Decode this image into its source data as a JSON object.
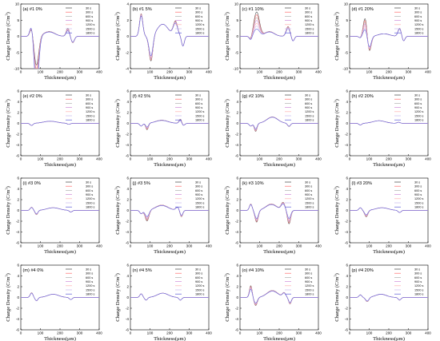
{
  "figure": {
    "xlabel": "Thickness(μm)",
    "ylabel": "Charge Density (C/m",
    "ylabel_sup": "3",
    "ylabel_close": ")"
  },
  "chart_data": {
    "type": "line",
    "xlim": [
      0,
      400
    ],
    "xticks": [
      0,
      100,
      200,
      300,
      400
    ],
    "legend": {
      "placement": "top-right",
      "entries": [
        "30 s",
        "300 s",
        "600 s",
        "900 s",
        "1200 s",
        "1500 s",
        "1800 s"
      ],
      "colors": [
        "#444444",
        "#ff6b6b",
        "#b0b0b0",
        "#d08ad8",
        "#ffb0b0",
        "#c9b7ee",
        "#5a5ad8"
      ]
    },
    "panels": [
      {
        "label": "(a) #1 0%",
        "ylim": [
          -10,
          10
        ],
        "yticks": [
          -10,
          -5,
          0,
          5,
          10
        ],
        "features": [
          [
            55,
            2.5,
            12,
            -0.4
          ],
          [
            80,
            -9,
            16,
            -0.8
          ],
          [
            145,
            1.5,
            40,
            0.1
          ],
          [
            240,
            2.5,
            12,
            0.3
          ],
          [
            265,
            -2,
            12,
            0.1
          ]
        ]
      },
      {
        "label": "(b) #1 5%",
        "ylim": [
          -4,
          4
        ],
        "yticks": [
          -4,
          -2,
          0,
          2,
          4
        ],
        "features": [
          [
            55,
            2.8,
            12,
            0.1
          ],
          [
            105,
            -3.2,
            14,
            0.2
          ],
          [
            165,
            1.5,
            40,
            0
          ],
          [
            230,
            1.8,
            16,
            0.15
          ],
          [
            268,
            -1.2,
            10,
            0
          ]
        ]
      },
      {
        "label": "(c) #1 10%",
        "ylim": [
          -10,
          10
        ],
        "yticks": [
          -10,
          -5,
          0,
          5,
          10
        ],
        "features": [
          [
            55,
            -1.2,
            10,
            0
          ],
          [
            85,
            7.5,
            20,
            0.7
          ],
          [
            150,
            1.5,
            35,
            0.1
          ],
          [
            245,
            3,
            14,
            0.2
          ],
          [
            270,
            -1.5,
            10,
            0
          ]
        ]
      },
      {
        "label": "(d) #1 20%",
        "ylim": [
          -10,
          10
        ],
        "yticks": [
          -10,
          -5,
          0,
          5,
          10
        ],
        "features": [
          [
            55,
            -0.5,
            10,
            0
          ],
          [
            80,
            6,
            14,
            0.6
          ],
          [
            100,
            -5,
            14,
            0.3
          ],
          [
            175,
            0.8,
            40,
            0
          ],
          [
            255,
            2.5,
            12,
            0.1
          ],
          [
            275,
            -1.5,
            10,
            0
          ]
        ]
      },
      {
        "label": "(e) #2 0%",
        "ylim": [
          -6,
          6
        ],
        "yticks": [
          -6,
          -4,
          -2,
          0,
          2,
          4,
          6
        ],
        "features": [
          [
            55,
            -0.4,
            10,
            0
          ],
          [
            150,
            0.4,
            50,
            0
          ],
          [
            245,
            -0.2,
            10,
            0
          ]
        ]
      },
      {
        "label": "(f) #2 5%",
        "ylim": [
          -6,
          6
        ],
        "yticks": [
          -6,
          -4,
          -2,
          0,
          2,
          4,
          6
        ],
        "features": [
          [
            55,
            -0.5,
            10,
            0
          ],
          [
            85,
            -1.2,
            10,
            0.4
          ],
          [
            160,
            0.6,
            45,
            0.1
          ],
          [
            255,
            0.8,
            10,
            0.3
          ],
          [
            270,
            -0.4,
            10,
            0
          ]
        ]
      },
      {
        "label": "(g) #2 10%",
        "ylim": [
          -6,
          6
        ],
        "yticks": [
          -6,
          -4,
          -2,
          0,
          2,
          4,
          6
        ],
        "features": [
          [
            55,
            -0.5,
            10,
            0
          ],
          [
            80,
            -1.5,
            10,
            0.3
          ],
          [
            165,
            1.2,
            40,
            0.05
          ],
          [
            250,
            -0.6,
            10,
            0.1
          ]
        ]
      },
      {
        "label": "(h) #2 20%",
        "ylim": [
          -6,
          6
        ],
        "yticks": [
          -6,
          -4,
          -2,
          0,
          2,
          4,
          6
        ],
        "features": [
          [
            55,
            -0.3,
            10,
            0
          ],
          [
            150,
            0.5,
            45,
            0
          ],
          [
            250,
            0.2,
            12,
            0
          ]
        ]
      },
      {
        "label": "(i) #3 0%",
        "ylim": [
          -6,
          6
        ],
        "yticks": [
          -6,
          -4,
          -2,
          0,
          2,
          4,
          6
        ],
        "features": [
          [
            55,
            0.6,
            10,
            0.1
          ],
          [
            80,
            -0.8,
            10,
            0.2
          ],
          [
            165,
            0.5,
            45,
            0
          ],
          [
            255,
            -0.3,
            10,
            0
          ]
        ]
      },
      {
        "label": "(j) #3 5%",
        "ylim": [
          -6,
          6
        ],
        "yticks": [
          -6,
          -4,
          -2,
          0,
          2,
          4,
          6
        ],
        "features": [
          [
            55,
            -0.6,
            10,
            0
          ],
          [
            85,
            -2,
            14,
            0.4
          ],
          [
            160,
            1,
            45,
            0.1
          ],
          [
            240,
            0.6,
            12,
            0.1
          ],
          [
            260,
            -1.2,
            10,
            0.2
          ]
        ]
      },
      {
        "label": "(k) #3 10%",
        "ylim": [
          -6,
          6
        ],
        "yticks": [
          -6,
          -4,
          -2,
          0,
          2,
          4,
          6
        ],
        "features": [
          [
            55,
            1.2,
            10,
            0.1
          ],
          [
            85,
            -2.2,
            12,
            0.3
          ],
          [
            160,
            1.2,
            40,
            0.1
          ],
          [
            220,
            1.4,
            14,
            0.2
          ],
          [
            250,
            -2.5,
            12,
            0.4
          ]
        ]
      },
      {
        "label": "(l) #3 20%",
        "ylim": [
          -6,
          6
        ],
        "yticks": [
          -6,
          -4,
          -2,
          0,
          2,
          4,
          6
        ],
        "features": [
          [
            55,
            0.5,
            10,
            0
          ],
          [
            85,
            -1.2,
            12,
            0.3
          ],
          [
            165,
            0.5,
            45,
            0
          ],
          [
            255,
            -0.4,
            10,
            0
          ]
        ]
      },
      {
        "label": "(m) #4 0%",
        "ylim": [
          -6,
          6
        ],
        "yticks": [
          -6,
          -4,
          -2,
          0,
          2,
          4,
          6
        ],
        "features": [
          [
            55,
            0.9,
            10,
            0.1
          ],
          [
            80,
            -0.6,
            10,
            0
          ],
          [
            165,
            0.6,
            40,
            0
          ],
          [
            255,
            -0.4,
            10,
            0
          ]
        ]
      },
      {
        "label": "(n) #4 5%",
        "ylim": [
          -6,
          6
        ],
        "yticks": [
          -6,
          -4,
          -2,
          0,
          2,
          4,
          6
        ],
        "features": [
          [
            55,
            0.7,
            10,
            0.05
          ],
          [
            80,
            -0.5,
            10,
            0
          ],
          [
            165,
            0.8,
            40,
            0
          ],
          [
            255,
            -0.5,
            10,
            0
          ]
        ]
      },
      {
        "label": "(o) #4 10%",
        "ylim": [
          -6,
          6
        ],
        "yticks": [
          -6,
          -4,
          -2,
          0,
          2,
          4,
          6
        ],
        "features": [
          [
            55,
            2.2,
            10,
            0.3
          ],
          [
            80,
            -1.5,
            12,
            0.3
          ],
          [
            165,
            1.3,
            40,
            0.1
          ],
          [
            225,
            0.8,
            12,
            0.1
          ],
          [
            255,
            -1.2,
            10,
            0.2
          ]
        ]
      },
      {
        "label": "(p) #4 20%",
        "ylim": [
          -6,
          6
        ],
        "yticks": [
          -6,
          -4,
          -2,
          0,
          2,
          4,
          6
        ],
        "features": [
          [
            55,
            0.5,
            10,
            0.05
          ],
          [
            90,
            -0.8,
            12,
            0.15
          ],
          [
            160,
            0.6,
            40,
            0
          ],
          [
            255,
            -0.5,
            10,
            0.05
          ]
        ]
      }
    ]
  }
}
